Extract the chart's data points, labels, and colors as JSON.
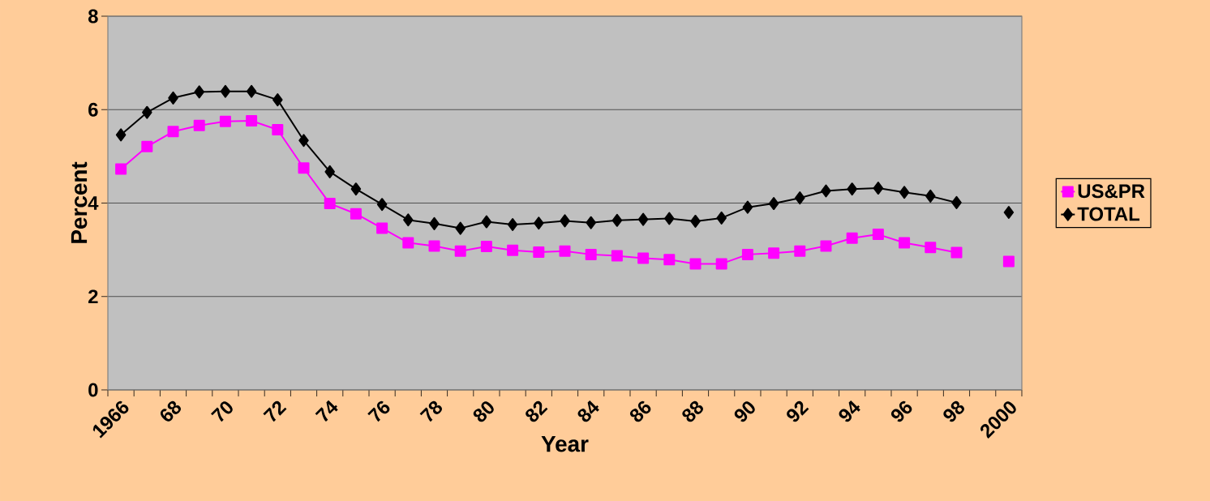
{
  "chart_data": {
    "type": "line",
    "xlabel": "Year",
    "ylabel": "Percent",
    "categories": [
      "1966",
      null,
      "68",
      null,
      "70",
      null,
      "72",
      null,
      "74",
      null,
      "76",
      null,
      "78",
      null,
      "80",
      null,
      "82",
      null,
      "84",
      null,
      "86",
      null,
      "88",
      null,
      "90",
      null,
      "92",
      null,
      "94",
      null,
      "96",
      null,
      "98",
      null,
      "2000"
    ],
    "series": [
      {
        "name": "US&PR",
        "color": "#ff00ff",
        "marker": "square",
        "values": [
          4.73,
          5.21,
          5.53,
          5.66,
          5.75,
          5.76,
          5.57,
          4.75,
          3.99,
          3.77,
          3.46,
          3.15,
          3.08,
          2.97,
          3.07,
          2.99,
          2.95,
          2.97,
          2.9,
          2.87,
          2.82,
          2.79,
          2.7,
          2.7,
          2.9,
          2.93,
          2.97,
          3.08,
          3.25,
          3.33,
          3.15,
          3.05,
          2.94,
          null,
          2.75
        ]
      },
      {
        "name": "TOTAL",
        "color": "#000000",
        "marker": "diamond",
        "values": [
          5.46,
          5.94,
          6.25,
          6.38,
          6.39,
          6.39,
          6.21,
          5.34,
          4.67,
          4.3,
          3.97,
          3.64,
          3.56,
          3.46,
          3.6,
          3.54,
          3.57,
          3.62,
          3.58,
          3.63,
          3.65,
          3.67,
          3.61,
          3.68,
          3.91,
          3.99,
          4.11,
          4.26,
          4.3,
          4.32,
          4.23,
          4.15,
          4.01,
          null,
          3.8
        ]
      }
    ],
    "ylim": [
      0,
      8
    ],
    "yticks": [
      0,
      2,
      4,
      6,
      8
    ],
    "grid": "y",
    "legend": "right",
    "line_style": "solid"
  }
}
